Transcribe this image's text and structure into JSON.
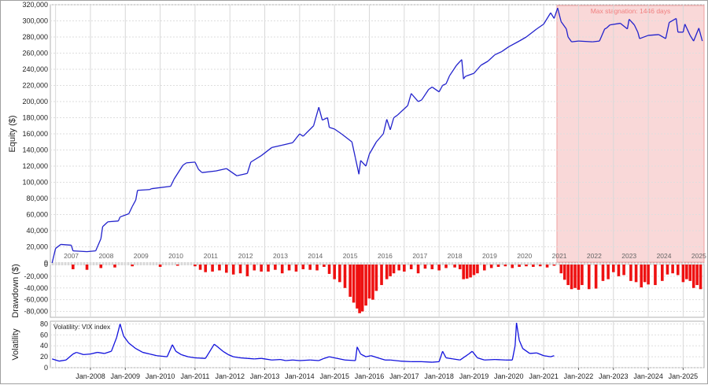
{
  "chart_data": [
    {
      "type": "line",
      "ylabel": "Equity ($)",
      "ylim": [
        0,
        320000
      ],
      "yticks": [
        0,
        20000,
        40000,
        60000,
        80000,
        100000,
        120000,
        140000,
        160000,
        180000,
        200000,
        220000,
        240000,
        260000,
        280000,
        300000,
        320000
      ],
      "ytick_labels": [
        "0",
        "20,000",
        "40,000",
        "60,000",
        "80,000",
        "100,000",
        "120,000",
        "140,000",
        "160,000",
        "180,000",
        "200,000",
        "220,000",
        "240,000",
        "260,000",
        "280,000",
        "300,000",
        "320,000"
      ],
      "xlim": [
        2006.85,
        2025.6
      ],
      "year_labels": [
        "2007",
        "2008",
        "2009",
        "2010",
        "2011",
        "2012",
        "2013",
        "2014",
        "2015",
        "2016",
        "2017",
        "2018",
        "2019",
        "2020",
        "2021",
        "2022",
        "2023",
        "2024",
        "2025"
      ],
      "grid": true,
      "line_color": "#2222cc",
      "annotation": {
        "text": "Max stagnation: 1446 days",
        "x_start": 2021.38,
        "x_end": 2025.6,
        "color": "#f9d8d8"
      },
      "x": [
        2006.9,
        2007.0,
        2007.15,
        2007.45,
        2007.5,
        2007.9,
        2008.15,
        2008.3,
        2008.35,
        2008.5,
        2008.8,
        2008.85,
        2009.1,
        2009.2,
        2009.3,
        2009.35,
        2009.7,
        2009.75,
        2010.3,
        2010.4,
        2010.65,
        2010.75,
        2011.0,
        2011.1,
        2011.2,
        2011.6,
        2011.9,
        2012.2,
        2012.5,
        2012.6,
        2012.9,
        2013.2,
        2013.5,
        2013.8,
        2014.0,
        2014.1,
        2014.4,
        2014.55,
        2014.65,
        2014.8,
        2014.85,
        2015.0,
        2015.2,
        2015.5,
        2015.6,
        2015.7,
        2015.75,
        2015.9,
        2016.0,
        2016.2,
        2016.4,
        2016.5,
        2016.6,
        2016.7,
        2016.8,
        2017.1,
        2017.2,
        2017.4,
        2017.5,
        2017.7,
        2017.8,
        2018.0,
        2018.1,
        2018.2,
        2018.3,
        2018.5,
        2018.65,
        2018.7,
        2018.75,
        2018.8,
        2019.0,
        2019.2,
        2019.4,
        2019.6,
        2019.8,
        2020.0,
        2020.3,
        2020.5,
        2020.8,
        2021.0,
        2021.2,
        2021.3,
        2021.4,
        2021.5,
        2021.65,
        2021.7,
        2021.8,
        2022.0,
        2022.4,
        2022.6,
        2022.75,
        2022.8,
        2022.9,
        2023.2,
        2023.4,
        2023.45,
        2023.6,
        2023.7,
        2023.75,
        2024.0,
        2024.3,
        2024.5,
        2024.6,
        2024.8,
        2024.85,
        2025.0,
        2025.05,
        2025.2,
        2025.3,
        2025.45,
        2025.55
      ],
      "y": [
        0,
        18000,
        23000,
        22000,
        15000,
        14000,
        15000,
        30000,
        45000,
        51000,
        52000,
        57000,
        61000,
        70000,
        78000,
        90000,
        91000,
        92000,
        95000,
        104000,
        121000,
        124000,
        125000,
        116000,
        112000,
        114000,
        117000,
        108000,
        111000,
        125000,
        133000,
        143000,
        146000,
        149000,
        160000,
        157000,
        170000,
        193000,
        177000,
        180000,
        168000,
        166000,
        160000,
        150000,
        130000,
        110000,
        127000,
        120000,
        135000,
        150000,
        160000,
        178000,
        165000,
        180000,
        183000,
        195000,
        210000,
        200000,
        202000,
        215000,
        218000,
        212000,
        220000,
        222000,
        232000,
        245000,
        252000,
        228000,
        231000,
        232000,
        235000,
        245000,
        250000,
        258000,
        262000,
        268000,
        275000,
        280000,
        290000,
        296000,
        310000,
        303000,
        316000,
        299000,
        290000,
        280000,
        274000,
        275000,
        274000,
        275000,
        290000,
        291000,
        295000,
        297000,
        290000,
        302000,
        295000,
        286000,
        278000,
        282000,
        283000,
        278000,
        298000,
        303000,
        286000,
        286000,
        296000,
        282000,
        275000,
        291000,
        275000
      ]
    },
    {
      "type": "bar",
      "ylabel": "Drawdown ($)",
      "ylim": [
        -90000,
        0
      ],
      "yticks": [
        0,
        -20000,
        -40000,
        -60000,
        -80000
      ],
      "ytick_labels": [
        "0",
        "-20,000",
        "-40,000",
        "-60,000",
        "-80,000"
      ],
      "xlim": [
        2006.85,
        2025.6
      ],
      "grid": true,
      "bar_color": "#ee1111",
      "x": [
        2007.5,
        2007.9,
        2008.3,
        2008.7,
        2009.2,
        2010.0,
        2010.5,
        2011.0,
        2011.15,
        2011.3,
        2011.5,
        2011.7,
        2011.9,
        2012.1,
        2012.3,
        2012.5,
        2012.7,
        2012.9,
        2013.1,
        2013.3,
        2013.5,
        2013.7,
        2013.9,
        2014.1,
        2014.3,
        2014.5,
        2014.7,
        2014.85,
        2015.0,
        2015.15,
        2015.3,
        2015.45,
        2015.55,
        2015.65,
        2015.72,
        2015.8,
        2015.9,
        2016.0,
        2016.1,
        2016.2,
        2016.35,
        2016.5,
        2016.6,
        2016.7,
        2016.85,
        2017.0,
        2017.2,
        2017.4,
        2017.6,
        2017.8,
        2018.0,
        2018.2,
        2018.45,
        2018.6,
        2018.7,
        2018.8,
        2018.9,
        2019.0,
        2019.1,
        2019.3,
        2019.5,
        2019.7,
        2019.9,
        2020.1,
        2020.3,
        2020.5,
        2020.7,
        2020.9,
        2021.1,
        2021.3,
        2021.5,
        2021.6,
        2021.7,
        2021.8,
        2021.9,
        2022.0,
        2022.1,
        2022.3,
        2022.5,
        2022.7,
        2022.85,
        2023.0,
        2023.15,
        2023.3,
        2023.5,
        2023.65,
        2023.8,
        2023.9,
        2024.0,
        2024.2,
        2024.4,
        2024.55,
        2024.7,
        2024.85,
        2025.0,
        2025.1,
        2025.2,
        2025.3,
        2025.4,
        2025.5
      ],
      "y": [
        -8000,
        -9000,
        -6000,
        -5000,
        -3000,
        -4000,
        -2000,
        -3000,
        -9000,
        -13000,
        -12000,
        -10000,
        -14000,
        -17000,
        -15000,
        -20000,
        -10000,
        -12000,
        -12000,
        -9000,
        -15000,
        -10000,
        -12000,
        -8000,
        -9000,
        -10000,
        -4000,
        -16000,
        -25000,
        -30000,
        -40000,
        -55000,
        -65000,
        -75000,
        -83000,
        -80000,
        -70000,
        -58000,
        -60000,
        -45000,
        -35000,
        -25000,
        -20000,
        -15000,
        -10000,
        -12000,
        -8000,
        -15000,
        -7000,
        -8000,
        -10000,
        -6000,
        -5000,
        -8000,
        -25000,
        -24000,
        -22000,
        -18000,
        -15000,
        -10000,
        -6000,
        -4000,
        -3000,
        -6000,
        -4000,
        -3000,
        -4000,
        -3000,
        -5000,
        -2000,
        -15000,
        -26000,
        -35000,
        -42000,
        -40000,
        -43000,
        -35000,
        -42000,
        -41000,
        -28000,
        -25000,
        -13000,
        -20000,
        -18000,
        -28000,
        -30000,
        -39000,
        -30000,
        -34000,
        -35000,
        -28000,
        -17000,
        -15000,
        -18000,
        -30000,
        -25000,
        -28000,
        -40000,
        -35000,
        -42000
      ]
    },
    {
      "type": "line",
      "ylabel": "Volatility",
      "legend": "Volatility: VIX index",
      "ylim": [
        0,
        85
      ],
      "yticks": [
        0,
        20,
        40,
        60,
        80
      ],
      "ytick_labels": [
        "0",
        "20",
        "40",
        "60",
        "80"
      ],
      "xlim": [
        2006.85,
        2025.6
      ],
      "x_tick_positions": [
        2008.0,
        2009.0,
        2010.0,
        2011.0,
        2012.0,
        2013.0,
        2014.0,
        2015.0,
        2016.0,
        2017.0,
        2018.0,
        2019.0,
        2020.0,
        2021.0,
        2022.0,
        2023.0,
        2024.0,
        2025.0
      ],
      "x_tick_labels": [
        "Jan-2008",
        "Jan-2009",
        "Jan-2010",
        "Jan-2011",
        "Jan-2012",
        "Jan-2013",
        "Jan-2014",
        "Jan-2015",
        "Jan-2016",
        "Jan-2017",
        "Jan-2018",
        "Jan-2019",
        "Jan-2020",
        "Jan-2021",
        "Jan-2022",
        "Jan-2023",
        "Jan-2024",
        "Jan-2025"
      ],
      "grid": true,
      "line_color": "#1111dd",
      "x": [
        2006.9,
        2007.1,
        2007.3,
        2007.5,
        2007.6,
        2007.8,
        2008.0,
        2008.2,
        2008.4,
        2008.6,
        2008.75,
        2008.85,
        2008.95,
        2009.1,
        2009.3,
        2009.5,
        2009.7,
        2009.9,
        2010.2,
        2010.35,
        2010.45,
        2010.6,
        2010.8,
        2011.0,
        2011.3,
        2011.55,
        2011.65,
        2011.8,
        2011.95,
        2012.1,
        2012.3,
        2012.5,
        2012.7,
        2012.9,
        2013.2,
        2013.45,
        2013.6,
        2013.8,
        2014.0,
        2014.3,
        2014.55,
        2014.7,
        2014.85,
        2015.0,
        2015.3,
        2015.6,
        2015.65,
        2015.75,
        2015.9,
        2016.05,
        2016.3,
        2016.45,
        2016.6,
        2016.9,
        2017.2,
        2017.5,
        2017.8,
        2018.0,
        2018.1,
        2018.2,
        2018.4,
        2018.6,
        2018.85,
        2018.95,
        2019.1,
        2019.3,
        2019.6,
        2019.9,
        2020.1,
        2020.18,
        2020.22,
        2020.3,
        2020.4,
        2020.6,
        2020.8,
        2021.0,
        2021.2,
        2021.3
      ],
      "y": [
        16,
        12,
        14,
        25,
        28,
        24,
        25,
        28,
        26,
        30,
        55,
        80,
        58,
        45,
        35,
        28,
        25,
        22,
        20,
        42,
        30,
        24,
        20,
        18,
        17,
        43,
        38,
        30,
        24,
        20,
        18,
        17,
        16,
        17,
        14,
        15,
        13,
        14,
        13,
        14,
        13,
        17,
        20,
        18,
        14,
        13,
        38,
        25,
        20,
        22,
        17,
        14,
        14,
        12,
        11,
        11,
        10,
        11,
        30,
        18,
        16,
        14,
        25,
        30,
        18,
        14,
        15,
        14,
        14,
        40,
        82,
        50,
        35,
        26,
        27,
        22,
        20,
        22
      ]
    }
  ]
}
